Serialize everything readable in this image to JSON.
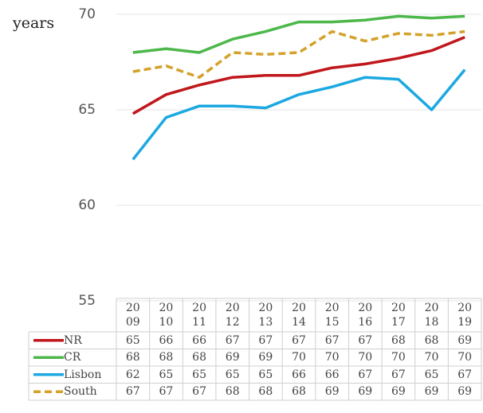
{
  "chart_data": {
    "type": "line",
    "y_label": "years",
    "categories": [
      "2009",
      "2010",
      "2011",
      "2012",
      "2013",
      "2014",
      "2015",
      "2016",
      "2017",
      "2018",
      "2019"
    ],
    "ylim": [
      55,
      70
    ],
    "yticks": [
      55,
      60,
      65,
      70
    ],
    "grid": true,
    "series": [
      {
        "name": "NR",
        "color": "#c0171c",
        "dash": false,
        "values": [
          64.8,
          65.8,
          66.3,
          66.7,
          66.8,
          66.8,
          67.2,
          67.4,
          67.7,
          68.1,
          68.8
        ],
        "value_labels": [
          65,
          66,
          66,
          67,
          67,
          67,
          67,
          67,
          68,
          68,
          69
        ]
      },
      {
        "name": "CR",
        "color": "#4cb84a",
        "dash": false,
        "values": [
          68.0,
          68.2,
          68.0,
          68.7,
          69.1,
          69.6,
          69.6,
          69.7,
          69.9,
          69.8,
          69.9
        ],
        "value_labels": [
          68,
          68,
          68,
          69,
          69,
          70,
          70,
          70,
          70,
          70,
          70
        ]
      },
      {
        "name": "Lisbon",
        "color": "#1ca8e0",
        "dash": false,
        "values": [
          62.4,
          64.6,
          65.2,
          65.2,
          65.1,
          65.8,
          66.2,
          66.7,
          66.6,
          65.0,
          67.1
        ],
        "value_labels": [
          62,
          65,
          65,
          65,
          65,
          66,
          66,
          67,
          67,
          65,
          67
        ]
      },
      {
        "name": "South",
        "color": "#d4a22a",
        "dash": true,
        "values": [
          67.0,
          67.3,
          66.7,
          68.0,
          67.9,
          68.0,
          69.1,
          68.6,
          69.0,
          68.9,
          69.1
        ],
        "value_labels": [
          67,
          67,
          67,
          68,
          68,
          68,
          69,
          69,
          69,
          69,
          69
        ]
      }
    ]
  }
}
